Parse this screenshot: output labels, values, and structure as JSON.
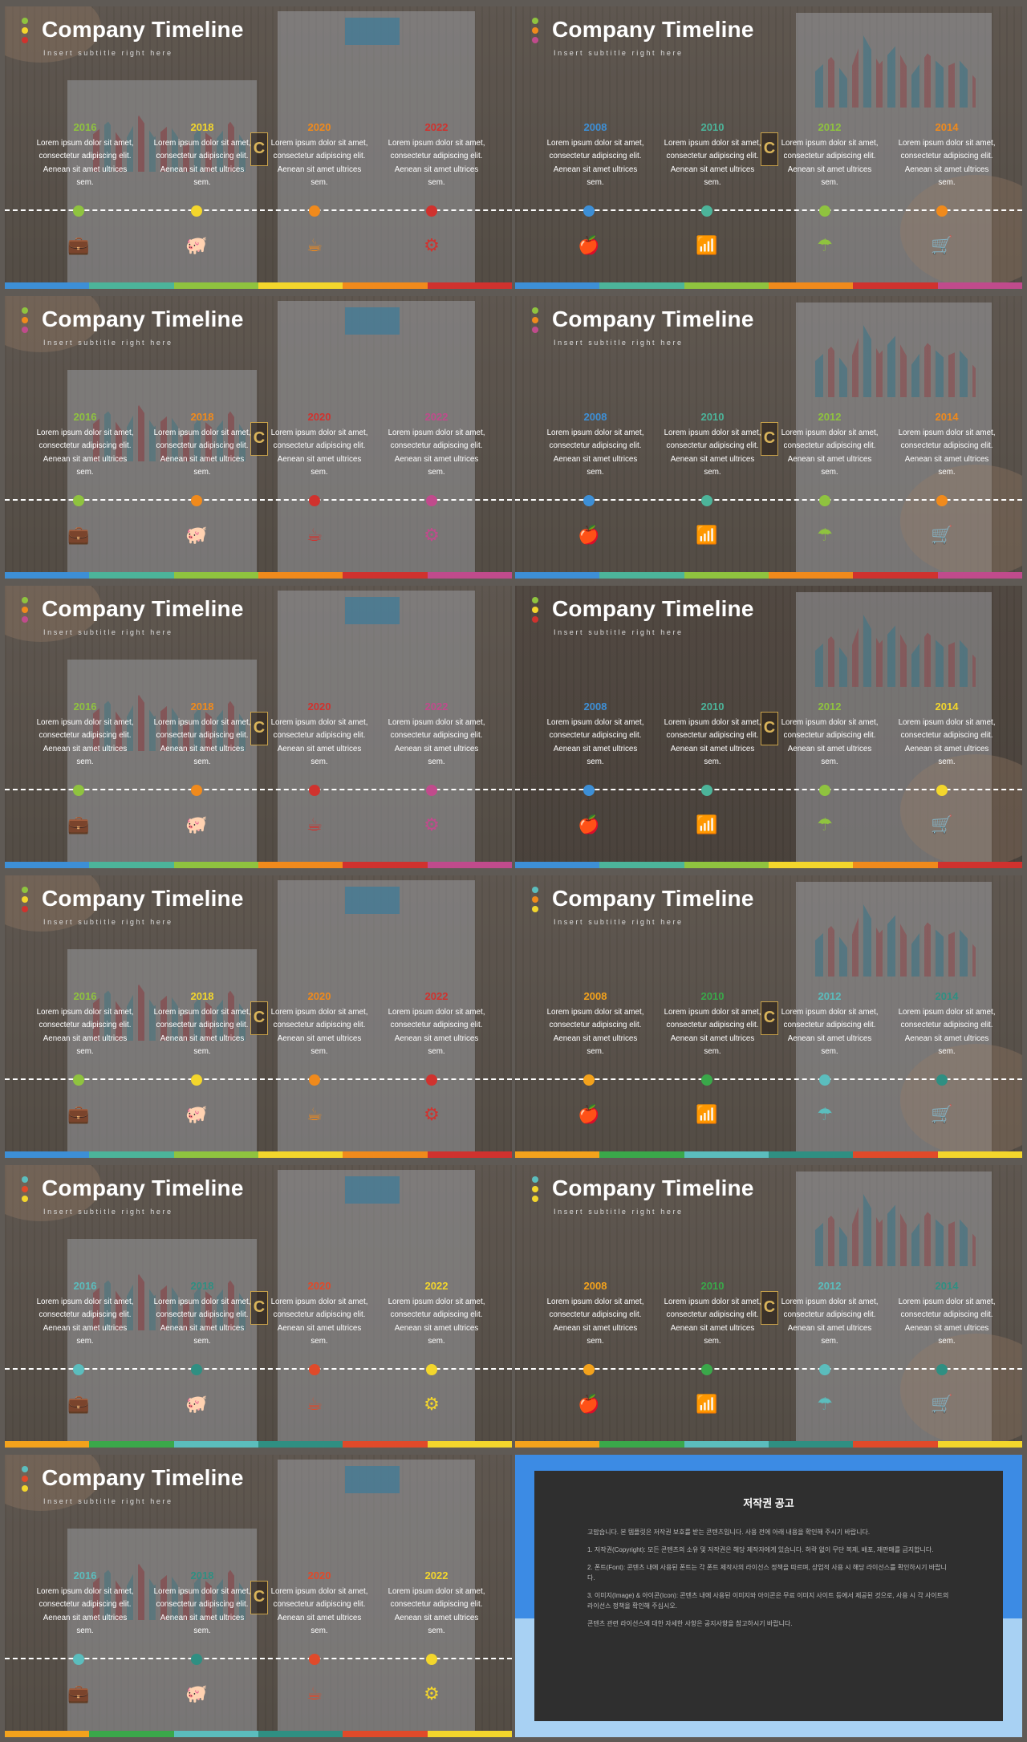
{
  "slide_title": "Company Timeline",
  "slide_subtitle": "Insert subtitle right here",
  "body_text": "Lorem ipsum dolor sit amet, consectetur adipiscing elit. Aenean sit amet ultrices sem.",
  "logo_letter": "C",
  "icons": {
    "briefcase-icon": "💼",
    "piggy-bank-icon": "🐖",
    "coffee-cup-icon": "☕",
    "gears-icon": "⚙",
    "apple-icon": "🍎",
    "rss-icon": "📶",
    "umbrella-icon": "☂",
    "cart-icon": "🛒"
  },
  "slides": [
    {
      "years": [
        "2016",
        "2018",
        "2020",
        "2022"
      ],
      "colors": [
        "#8fc33f",
        "#f3d62c",
        "#f08a1c",
        "#d0322e"
      ],
      "header_dots": [
        "#8fc33f",
        "#f3d62c",
        "#d0322e"
      ],
      "bar": [
        "#3d8fd6",
        "#4cb49a",
        "#8fc33f",
        "#f3d62c",
        "#f08a1c",
        "#d0322e"
      ],
      "icons": [
        "briefcase-icon",
        "piggy-bank-icon",
        "coffee-cup-icon",
        "gears-icon"
      ]
    },
    {
      "years": [
        "2008",
        "2010",
        "2012",
        "2014"
      ],
      "colors": [
        "#3d8fd6",
        "#4cb49a",
        "#8fc33f",
        "#f08a1c"
      ],
      "header_dots": [
        "#8fc33f",
        "#f08a1c",
        "#c04b8c"
      ],
      "bar": [
        "#3d8fd6",
        "#4cb49a",
        "#8fc33f",
        "#f08a1c",
        "#d0322e",
        "#c04b8c"
      ],
      "icons": [
        "apple-icon",
        "rss-icon",
        "umbrella-icon",
        "cart-icon"
      ]
    },
    {
      "years": [
        "2016",
        "2018",
        "2020",
        "2022"
      ],
      "colors": [
        "#8fc33f",
        "#f08a1c",
        "#d0322e",
        "#c04b8c"
      ],
      "header_dots": [
        "#8fc33f",
        "#f08a1c",
        "#c04b8c"
      ],
      "bar": [
        "#3d8fd6",
        "#4cb49a",
        "#8fc33f",
        "#f08a1c",
        "#d0322e",
        "#c04b8c"
      ],
      "icons": [
        "briefcase-icon",
        "piggy-bank-icon",
        "coffee-cup-icon",
        "gears-icon"
      ]
    },
    {
      "years": [
        "2008",
        "2010",
        "2012",
        "2014"
      ],
      "colors": [
        "#3d8fd6",
        "#4cb49a",
        "#8fc33f",
        "#f08a1c"
      ],
      "header_dots": [
        "#8fc33f",
        "#f08a1c",
        "#c04b8c"
      ],
      "bar": [
        "#3d8fd6",
        "#4cb49a",
        "#8fc33f",
        "#f08a1c",
        "#d0322e",
        "#c04b8c"
      ],
      "icons": [
        "apple-icon",
        "rss-icon",
        "umbrella-icon",
        "cart-icon"
      ]
    },
    {
      "years": [
        "2016",
        "2018",
        "2020",
        "2022"
      ],
      "colors": [
        "#8fc33f",
        "#f08a1c",
        "#d0322e",
        "#c04b8c"
      ],
      "header_dots": [
        "#8fc33f",
        "#f08a1c",
        "#c04b8c"
      ],
      "bar": [
        "#3d8fd6",
        "#4cb49a",
        "#8fc33f",
        "#f08a1c",
        "#d0322e",
        "#c04b8c"
      ],
      "icons": [
        "briefcase-icon",
        "piggy-bank-icon",
        "coffee-cup-icon",
        "gears-icon"
      ]
    },
    {
      "years": [
        "2008",
        "2010",
        "2012",
        "2014"
      ],
      "colors": [
        "#3d8fd6",
        "#4cb49a",
        "#8fc33f",
        "#f3d62c"
      ],
      "header_dots": [
        "#8fc33f",
        "#f3d62c",
        "#d0322e"
      ],
      "bar": [
        "#3d8fd6",
        "#4cb49a",
        "#8fc33f",
        "#f3d62c",
        "#f08a1c",
        "#d0322e"
      ],
      "icons": [
        "apple-icon",
        "rss-icon",
        "umbrella-icon",
        "cart-icon"
      ]
    },
    {
      "years": [
        "2016",
        "2018",
        "2020",
        "2022"
      ],
      "colors": [
        "#8fc33f",
        "#f3d62c",
        "#f08a1c",
        "#d0322e"
      ],
      "header_dots": [
        "#8fc33f",
        "#f3d62c",
        "#d0322e"
      ],
      "bar": [
        "#3d8fd6",
        "#4cb49a",
        "#8fc33f",
        "#f3d62c",
        "#f08a1c",
        "#d0322e"
      ],
      "icons": [
        "briefcase-icon",
        "piggy-bank-icon",
        "coffee-cup-icon",
        "gears-icon"
      ]
    },
    {
      "years": [
        "2008",
        "2010",
        "2012",
        "2014"
      ],
      "colors": [
        "#f3a21c",
        "#3aa84a",
        "#5bbdbd",
        "#2f8f82"
      ],
      "header_dots": [
        "#5bbdbd",
        "#f08a1c",
        "#f3d62c"
      ],
      "bar": [
        "#f3a21c",
        "#3aa84a",
        "#5bbdbd",
        "#2f8f82",
        "#e04a2a",
        "#f3d62c"
      ],
      "icons": [
        "apple-icon",
        "rss-icon",
        "umbrella-icon",
        "cart-icon"
      ]
    },
    {
      "years": [
        "2016",
        "2018",
        "2020",
        "2022"
      ],
      "colors": [
        "#5bbdbd",
        "#2f8f82",
        "#e04a2a",
        "#f3d62c"
      ],
      "header_dots": [
        "#5bbdbd",
        "#e04a2a",
        "#f3d62c"
      ],
      "bar": [
        "#f3a21c",
        "#3aa84a",
        "#5bbdbd",
        "#2f8f82",
        "#e04a2a",
        "#f3d62c"
      ],
      "icons": [
        "briefcase-icon",
        "piggy-bank-icon",
        "coffee-cup-icon",
        "gears-icon"
      ]
    },
    {
      "years": [
        "2008",
        "2010",
        "2012",
        "2014"
      ],
      "colors": [
        "#f3a21c",
        "#3aa84a",
        "#5bbdbd",
        "#2f8f82"
      ],
      "header_dots": [
        "#5bbdbd",
        "#f3d62c",
        "#f3d62c"
      ],
      "bar": [
        "#f3a21c",
        "#3aa84a",
        "#5bbdbd",
        "#2f8f82",
        "#e04a2a",
        "#f3d62c"
      ],
      "icons": [
        "apple-icon",
        "rss-icon",
        "umbrella-icon",
        "cart-icon"
      ]
    },
    {
      "years": [
        "2016",
        "2018",
        "2020",
        "2022"
      ],
      "colors": [
        "#5bbdbd",
        "#2f8f82",
        "#e04a2a",
        "#f3d62c"
      ],
      "header_dots": [
        "#5bbdbd",
        "#e04a2a",
        "#f3d62c"
      ],
      "bar": [
        "#f3a21c",
        "#3aa84a",
        "#5bbdbd",
        "#2f8f82",
        "#e04a2a",
        "#f3d62c"
      ],
      "icons": [
        "briefcase-icon",
        "piggy-bank-icon",
        "coffee-cup-icon",
        "gears-icon"
      ]
    }
  ],
  "notice": {
    "title": "저작권 공고",
    "intro": "고맙습니다. 본 템플릿은 저작권 보호를 받는 콘텐츠입니다. 사용 전에 아래 내용을 확인해 주시기 바랍니다.",
    "section1": "1. 저작권(Copyright): 모든 콘텐츠의 소유 및 저작권은 해당 제작자에게 있습니다. 허락 없이 무단 복제, 배포, 재판매를 금지합니다.",
    "section2": "2. 폰트(Font): 콘텐츠 내에 사용된 폰트는 각 폰트 제작사의 라이선스 정책을 따르며, 상업적 사용 시 해당 라이선스를 확인하시기 바랍니다.",
    "section3": "3. 이미지(Image) & 아이콘(Icon): 콘텐츠 내에 사용된 이미지와 아이콘은 무료 이미지 사이트 등에서 제공된 것으로, 사용 시 각 사이트의 라이선스 정책을 확인해 주십시오.",
    "outro": "콘텐츠 관련 라이선스에 대한 자세한 사항은 공지사항을 참고하시기 바랍니다."
  }
}
